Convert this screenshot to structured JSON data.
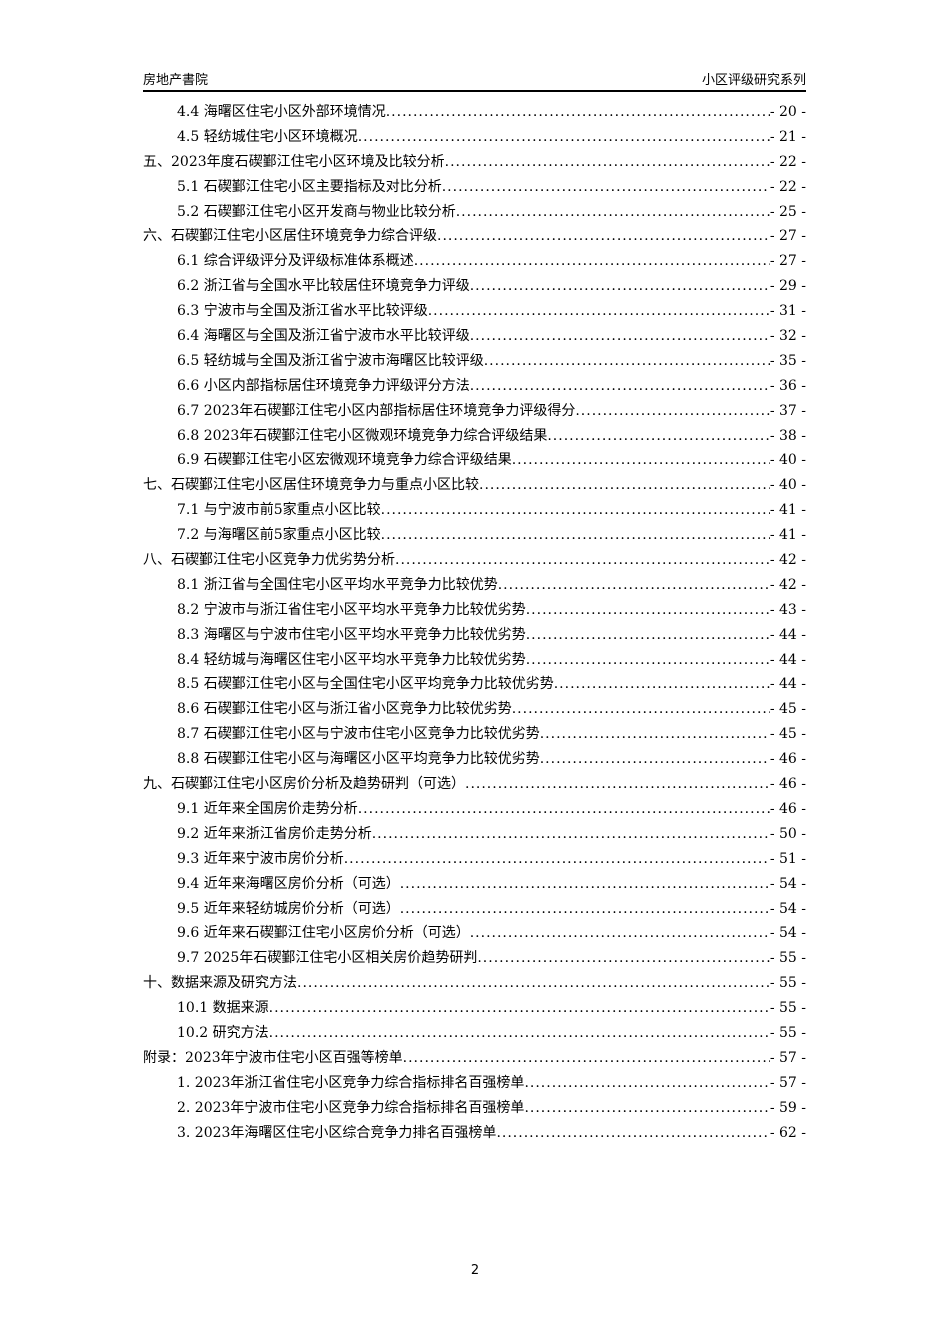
{
  "header": {
    "left": "房地产書院",
    "right": "小区评级研究系列"
  },
  "toc": [
    {
      "level": 2,
      "title": "4.4 海曙区住宅小区外部环境情况",
      "page": "- 20 -"
    },
    {
      "level": 2,
      "title": "4.5 轻纺城住宅小区环境概况",
      "page": "- 21 -"
    },
    {
      "level": 1,
      "title": "五、2023年度石碶鄞江住宅小区环境及比较分析",
      "page": "- 22 -"
    },
    {
      "level": 2,
      "title": "5.1 石碶鄞江住宅小区主要指标及对比分析",
      "page": "- 22 -"
    },
    {
      "level": 2,
      "title": "5.2 石碶鄞江住宅小区开发商与物业比较分析",
      "page": "- 25 -"
    },
    {
      "level": 1,
      "title": "六、石碶鄞江住宅小区居住环境竞争力综合评级",
      "page": "- 27 -"
    },
    {
      "level": 2,
      "title": "6.1 综合评级评分及评级标准体系概述",
      "page": "- 27 -"
    },
    {
      "level": 2,
      "title": "6.2 浙江省与全国水平比较居住环境竞争力评级",
      "page": "- 29 -"
    },
    {
      "level": 2,
      "title": "6.3 宁波市与全国及浙江省水平比较评级",
      "page": "- 31 -"
    },
    {
      "level": 2,
      "title": "6.4 海曙区与全国及浙江省宁波市水平比较评级",
      "page": "- 32 -"
    },
    {
      "level": 2,
      "title": "6.5 轻纺城与全国及浙江省宁波市海曙区比较评级",
      "page": "- 35 -"
    },
    {
      "level": 2,
      "title": "6.6 小区内部指标居住环境竞争力评级评分方法",
      "page": "- 36 -"
    },
    {
      "level": 2,
      "title": "6.7 2023年石碶鄞江住宅小区内部指标居住环境竞争力评级得分",
      "page": "- 37 -"
    },
    {
      "level": 2,
      "title": "6.8 2023年石碶鄞江住宅小区微观环境竞争力综合评级结果",
      "page": "- 38 -"
    },
    {
      "level": 2,
      "title": "6.9 石碶鄞江住宅小区宏微观环境竞争力综合评级结果",
      "page": "- 40 -"
    },
    {
      "level": 1,
      "title": "七、石碶鄞江住宅小区居住环境竞争力与重点小区比较",
      "page": "- 40 -"
    },
    {
      "level": 2,
      "title": "7.1 与宁波市前5家重点小区比较",
      "page": "- 41 -"
    },
    {
      "level": 2,
      "title": "7.2 与海曙区前5家重点小区比较",
      "page": "- 41 -"
    },
    {
      "level": 1,
      "title": "八、石碶鄞江住宅小区竞争力优劣势分析",
      "page": "- 42 -"
    },
    {
      "level": 2,
      "title": "8.1 浙江省与全国住宅小区平均水平竞争力比较优势",
      "page": "- 42 -"
    },
    {
      "level": 2,
      "title": "8.2 宁波市与浙江省住宅小区平均水平竞争力比较优劣势",
      "page": "- 43 -"
    },
    {
      "level": 2,
      "title": "8.3 海曙区与宁波市住宅小区平均水平竞争力比较优劣势",
      "page": "- 44 -"
    },
    {
      "level": 2,
      "title": "8.4 轻纺城与海曙区住宅小区平均水平竞争力比较优劣势",
      "page": "- 44 -"
    },
    {
      "level": 2,
      "title": "8.5 石碶鄞江住宅小区与全国住宅小区平均竞争力比较优劣势",
      "page": "- 44 -"
    },
    {
      "level": 2,
      "title": "8.6 石碶鄞江住宅小区与浙江省小区竞争力比较优劣势",
      "page": "- 45 -"
    },
    {
      "level": 2,
      "title": "8.7 石碶鄞江住宅小区与宁波市住宅小区竞争力比较优劣势",
      "page": "- 45 -"
    },
    {
      "level": 2,
      "title": "8.8 石碶鄞江住宅小区与海曙区小区平均竞争力比较优劣势",
      "page": "- 46 -"
    },
    {
      "level": 1,
      "title": "九、石碶鄞江住宅小区房价分析及趋势研判（可选）",
      "page": "- 46 -"
    },
    {
      "level": 2,
      "title": "9.1 近年来全国房价走势分析",
      "page": "- 46 -"
    },
    {
      "level": 2,
      "title": "9.2 近年来浙江省房价走势分析",
      "page": "- 50 -"
    },
    {
      "level": 2,
      "title": "9.3 近年来宁波市房价分析",
      "page": "- 51 -"
    },
    {
      "level": 2,
      "title": "9.4 近年来海曙区房价分析（可选）",
      "page": "- 54 -"
    },
    {
      "level": 2,
      "title": "9.5 近年来轻纺城房价分析（可选）",
      "page": "- 54 -"
    },
    {
      "level": 2,
      "title": "9.6 近年来石碶鄞江住宅小区房价分析（可选）",
      "page": "- 54 -"
    },
    {
      "level": 2,
      "title": "9.7 2025年石碶鄞江住宅小区相关房价趋势研判",
      "page": "- 55 -"
    },
    {
      "level": 1,
      "title": "十、数据来源及研究方法",
      "page": "- 55 -"
    },
    {
      "level": 2,
      "title": "10.1 数据来源",
      "page": "- 55 -"
    },
    {
      "level": 2,
      "title": "10.2 研究方法",
      "page": "- 55 -"
    },
    {
      "level": 1,
      "title": "附录：2023年宁波市住宅小区百强等榜单",
      "page": "- 57 -"
    },
    {
      "level": 2,
      "title": "1. 2023年浙江省住宅小区竞争力综合指标排名百强榜单",
      "page": "- 57 -"
    },
    {
      "level": 2,
      "title": "2. 2023年宁波市住宅小区竞争力综合指标排名百强榜单",
      "page": "- 59 -"
    },
    {
      "level": 2,
      "title": "3. 2023年海曙区住宅小区综合竞争力排名百强榜单",
      "page": "- 62 -"
    }
  ],
  "footer": {
    "page_number": "2"
  }
}
